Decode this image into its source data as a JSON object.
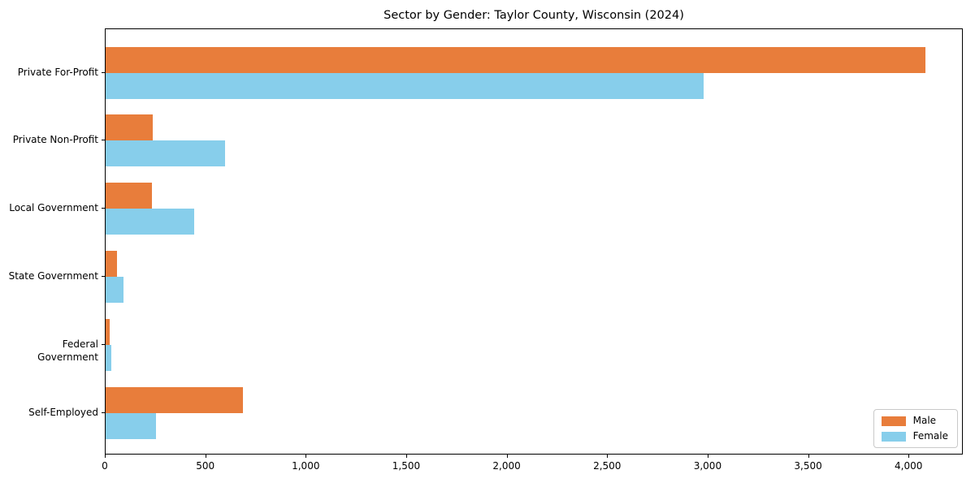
{
  "chart_data": {
    "type": "bar",
    "orientation": "horizontal",
    "title": "Sector by Gender: Taylor County, Wisconsin (2024)",
    "categories": [
      "Private For-Profit",
      "Private Non-Profit",
      "Local Government",
      "State Government",
      "Federal Government",
      "Self-Employed"
    ],
    "series": [
      {
        "name": "Male",
        "color": "#e87d3b",
        "values": [
          4080,
          235,
          230,
          55,
          20,
          685
        ]
      },
      {
        "name": "Female",
        "color": "#87ceeb",
        "values": [
          2975,
          595,
          440,
          90,
          27,
          250
        ]
      }
    ],
    "xlabel": "",
    "ylabel": "",
    "xlim": [
      0,
      4270
    ],
    "x_ticks": [
      {
        "value": 0,
        "label": "0"
      },
      {
        "value": 500,
        "label": "500"
      },
      {
        "value": 1000,
        "label": "1,000"
      },
      {
        "value": 1500,
        "label": "1,500"
      },
      {
        "value": 2000,
        "label": "2,000"
      },
      {
        "value": 2500,
        "label": "2,500"
      },
      {
        "value": 3000,
        "label": "3,000"
      },
      {
        "value": 3500,
        "label": "3,500"
      },
      {
        "value": 4000,
        "label": "4,000"
      }
    ],
    "legend": {
      "position": "lower-right"
    },
    "grid": false
  }
}
